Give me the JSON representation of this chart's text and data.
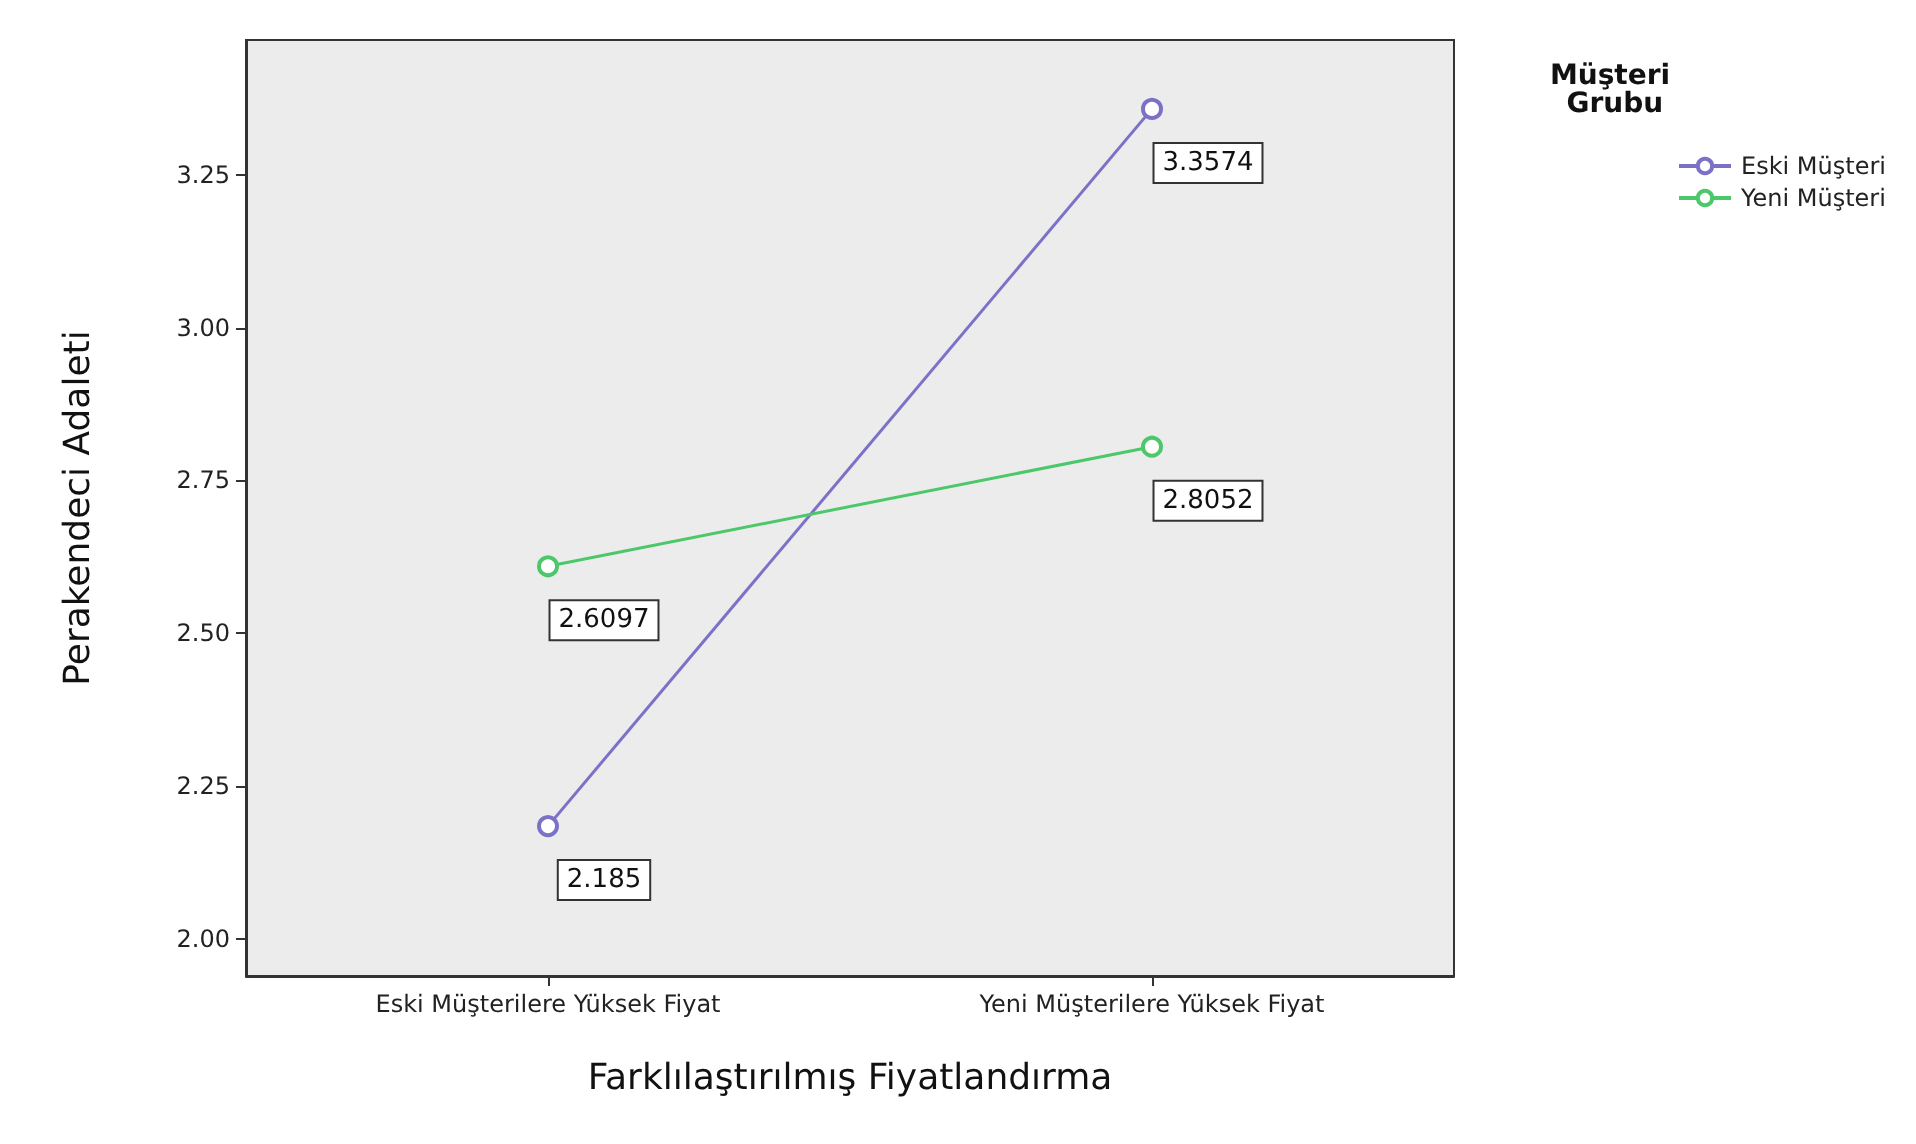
{
  "chart_data": {
    "type": "line",
    "xlabel": "Farklılaştırılmış Fiyatlandırma",
    "ylabel": "Perakendeci Adaleti",
    "legend_title": "Müşteri Grubu",
    "categories": [
      "Eski Müşterilere Yüksek Fiyat",
      "Yeni Müşterilere Yüksek Fiyat"
    ],
    "series": [
      {
        "name": "Eski Müşteri",
        "color": "#7b72c8",
        "values": [
          2.185,
          3.3574
        ],
        "value_labels": [
          "2.185",
          "3.3574"
        ]
      },
      {
        "name": "Yeni Müşteri",
        "color": "#4cc76a",
        "values": [
          2.6097,
          2.8052
        ],
        "value_labels": [
          "2.6097",
          "2.8052"
        ]
      }
    ],
    "ylim": [
      1.94,
      3.47
    ],
    "yticks": [
      {
        "value": 2,
        "label": "2.00"
      },
      {
        "value": 2.25,
        "label": "2.25"
      },
      {
        "value": 2.5,
        "label": "2.50"
      },
      {
        "value": 2.75,
        "label": "2.75"
      },
      {
        "value": 3,
        "label": "3.00"
      },
      {
        "value": 3.25,
        "label": "3.25"
      }
    ],
    "grid": false,
    "legend": "top right",
    "marker": "circle",
    "line_style": "solid"
  }
}
